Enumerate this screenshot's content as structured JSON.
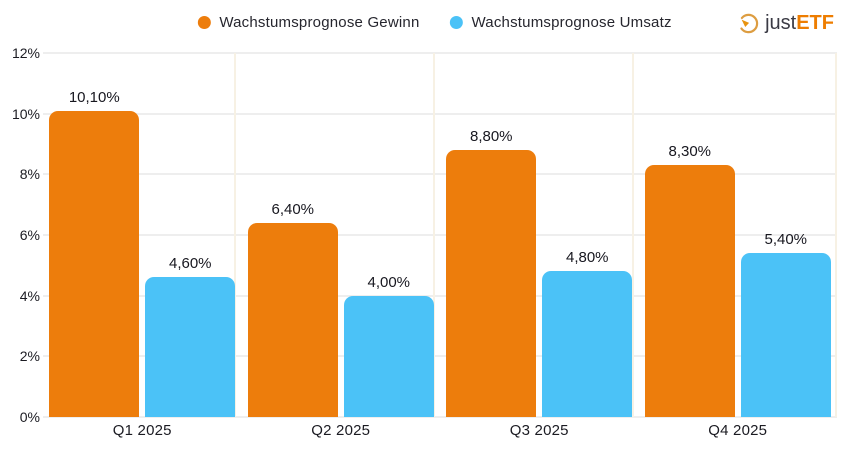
{
  "brand": {
    "name": "justETF",
    "logo_just": "just",
    "logo_etf": "ETF",
    "icon": "gauge-icon",
    "colors": {
      "orange": "#EE7D00",
      "dark": "#3A3A44"
    }
  },
  "chart_data": {
    "type": "bar",
    "title": "",
    "categories": [
      "Q1 2025",
      "Q2 2025",
      "Q3 2025",
      "Q4 2025"
    ],
    "series": [
      {
        "name": "Wachstumsprognose Gewinn",
        "color": "#ED7D0C",
        "values": [
          10.1,
          6.4,
          8.8,
          8.3
        ],
        "labels": [
          "10,10%",
          "6,40%",
          "8,80%",
          "8,30%"
        ]
      },
      {
        "name": "Wachstumsprognose Umsatz",
        "color": "#4BC2F7",
        "values": [
          4.6,
          4.0,
          4.8,
          5.4
        ],
        "labels": [
          "4,60%",
          "4,00%",
          "4,80%",
          "5,40%"
        ]
      }
    ],
    "ylim": [
      0,
      12
    ],
    "yticks": [
      "0%",
      "2%",
      "4%",
      "6%",
      "8%",
      "10%",
      "12%"
    ],
    "grid": true,
    "legend_position": "top"
  }
}
